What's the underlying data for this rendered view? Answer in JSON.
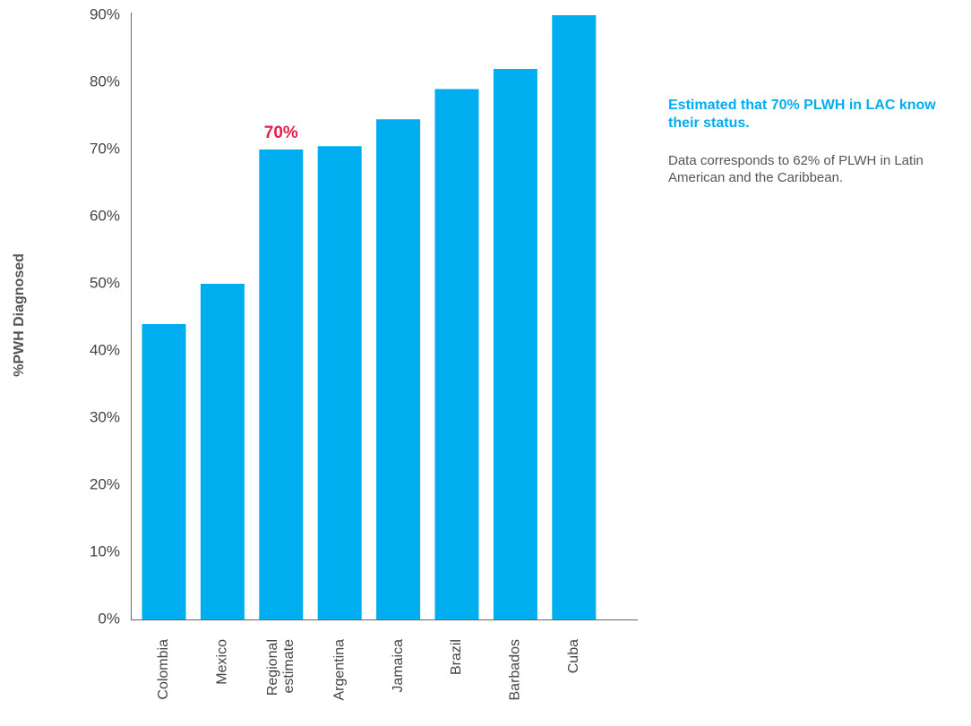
{
  "colors": {
    "bar": "#00ADEF",
    "highlight": "#E31E4A",
    "text": "#444444",
    "axis": "#666666"
  },
  "chart_data": {
    "type": "bar",
    "categories": [
      "Colombia",
      "Mexico",
      "Regional estimate",
      "Argentina",
      "Jamaica",
      "Brazil",
      "Barbados",
      "Cuba"
    ],
    "category_lines": [
      [
        "Colombia"
      ],
      [
        "Mexico"
      ],
      [
        "Regional",
        "estimate"
      ],
      [
        "Argentina"
      ],
      [
        "Jamaica"
      ],
      [
        "Brazil"
      ],
      [
        "Barbados"
      ],
      [
        "Cuba"
      ]
    ],
    "values": [
      44,
      50,
      70,
      70.5,
      74.5,
      79,
      82,
      90
    ],
    "ylabel": "%PWH Diagnosed",
    "ylim": [
      0,
      90
    ],
    "yticks": [
      0,
      10,
      20,
      30,
      40,
      50,
      60,
      70,
      80,
      90
    ],
    "ytick_labels": [
      "0%",
      "10%",
      "20%",
      "30%",
      "40%",
      "50%",
      "60%",
      "70%",
      "80%",
      "90%"
    ],
    "data_labels": [
      {
        "category": "Regional estimate",
        "text": "70%"
      }
    ],
    "grid": false,
    "legend": false
  },
  "note": {
    "heading": "Estimated that 70% PLWH in LAC know their status.",
    "body": "Data corresponds to 62% of PLWH in Latin American and  the Caribbean."
  }
}
